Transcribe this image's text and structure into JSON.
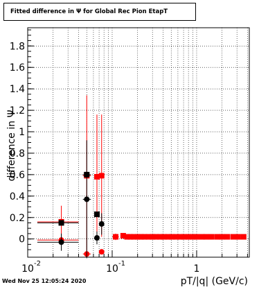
{
  "title": "Fitted difference in  Ψ  for Global Rec Pion EtapT",
  "timestamp": "Wed Nov 25 12:05:24 2020",
  "chart_data": {
    "type": "scatter",
    "x_scale": "log",
    "xlabel": "pT/|q| (GeV/c)",
    "ylabel": "difference in Ψ",
    "xlim": [
      0.01,
      4.2
    ],
    "ylim": [
      -0.17,
      1.97
    ],
    "grid": true,
    "x_ticks": [
      {
        "value": 0.01,
        "label": "10",
        "exp": "-2"
      },
      {
        "value": 0.1,
        "label": "10",
        "exp": "-1"
      },
      {
        "value": 1,
        "label": "1",
        "exp": ""
      }
    ],
    "y_ticks": [
      {
        "value": 0,
        "label": "0"
      },
      {
        "value": 0.2,
        "label": "0.2"
      },
      {
        "value": 0.4,
        "label": "0.4"
      },
      {
        "value": 0.6,
        "label": "0.6"
      },
      {
        "value": 0.8,
        "label": "0.8"
      },
      {
        "value": 1.0,
        "label": "1"
      },
      {
        "value": 1.2,
        "label": "1.2"
      },
      {
        "value": 1.4,
        "label": "1.4"
      },
      {
        "value": 1.6,
        "label": "1.6"
      },
      {
        "value": 1.8,
        "label": "1.8"
      }
    ],
    "series": [
      {
        "color": "#ff0000",
        "marker": "square",
        "points": [
          {
            "x": 0.025,
            "y": 0.16,
            "yerr": 0.15,
            "xlo": 0.013,
            "xhi": 0.04
          },
          {
            "x": 0.05,
            "y": 0.59,
            "yerr": 0.75,
            "xlo": 0.045,
            "xhi": 0.056
          },
          {
            "x": 0.066,
            "y": 0.58,
            "yerr": 0.58,
            "xlo": 0.062,
            "xhi": 0.07
          },
          {
            "x": 0.075,
            "y": 0.59,
            "yerr": 0.57,
            "xlo": 0.071,
            "xhi": 0.08
          },
          {
            "x": 0.11,
            "y": 0.02,
            "yerr": 0.03,
            "xlo": 0.1,
            "xhi": 0.12
          },
          {
            "x": 0.135,
            "y": 0.03
          },
          {
            "x": 0.15,
            "y": 0.02
          },
          {
            "x": 0.165,
            "y": 0.02
          },
          {
            "x": 0.18,
            "y": 0.02
          },
          {
            "x": 0.2,
            "y": 0.02
          },
          {
            "x": 0.22,
            "y": 0.02
          },
          {
            "x": 0.24,
            "y": 0.02
          },
          {
            "x": 0.27,
            "y": 0.02
          },
          {
            "x": 0.3,
            "y": 0.02
          },
          {
            "x": 0.33,
            "y": 0.02
          },
          {
            "x": 0.37,
            "y": 0.02
          },
          {
            "x": 0.41,
            "y": 0.02
          },
          {
            "x": 0.46,
            "y": 0.02
          },
          {
            "x": 0.51,
            "y": 0.02
          },
          {
            "x": 0.57,
            "y": 0.02
          },
          {
            "x": 0.64,
            "y": 0.02
          },
          {
            "x": 0.71,
            "y": 0.02
          },
          {
            "x": 0.8,
            "y": 0.02
          },
          {
            "x": 0.9,
            "y": 0.02
          },
          {
            "x": 1.0,
            "y": 0.02
          },
          {
            "x": 1.15,
            "y": 0.02
          },
          {
            "x": 1.3,
            "y": 0.02
          },
          {
            "x": 1.5,
            "y": 0.02
          },
          {
            "x": 1.75,
            "y": 0.02
          },
          {
            "x": 2.0,
            "y": 0.02
          },
          {
            "x": 2.3,
            "y": 0.02
          },
          {
            "x": 2.7,
            "y": 0.02
          },
          {
            "x": 3.1,
            "y": 0.02
          },
          {
            "x": 3.6,
            "y": 0.02
          }
        ]
      },
      {
        "color": "#000000",
        "marker": "square",
        "points": [
          {
            "x": 0.025,
            "y": 0.15,
            "xlo": 0.013,
            "xhi": 0.04
          },
          {
            "x": 0.05,
            "y": 0.6,
            "xlo": 0.045,
            "xhi": 0.056
          },
          {
            "x": 0.066,
            "y": 0.23,
            "xlo": 0.062,
            "xhi": 0.07
          }
        ]
      },
      {
        "color": "#ff0000",
        "marker": "circle",
        "points": [
          {
            "x": 0.025,
            "y": -0.01,
            "xlo": 0.013,
            "xhi": 0.04
          },
          {
            "x": 0.05,
            "y": -0.14,
            "xlo": 0.045,
            "xhi": 0.056
          },
          {
            "x": 0.075,
            "y": -0.12,
            "xlo": 0.071,
            "xhi": 0.08
          }
        ]
      },
      {
        "color": "#000000",
        "marker": "circle",
        "points": [
          {
            "x": 0.025,
            "y": -0.03,
            "yerr": 0.08,
            "xlo": 0.013,
            "xhi": 0.04
          },
          {
            "x": 0.05,
            "y": 0.37,
            "yerr": 0.55,
            "xlo": 0.045,
            "xhi": 0.056
          },
          {
            "x": 0.066,
            "y": 0.01,
            "yerr": 0.06,
            "xlo": 0.062,
            "xhi": 0.07
          },
          {
            "x": 0.075,
            "y": 0.14,
            "yerr": 0.1,
            "xlo": 0.071,
            "xhi": 0.08
          }
        ]
      }
    ]
  }
}
